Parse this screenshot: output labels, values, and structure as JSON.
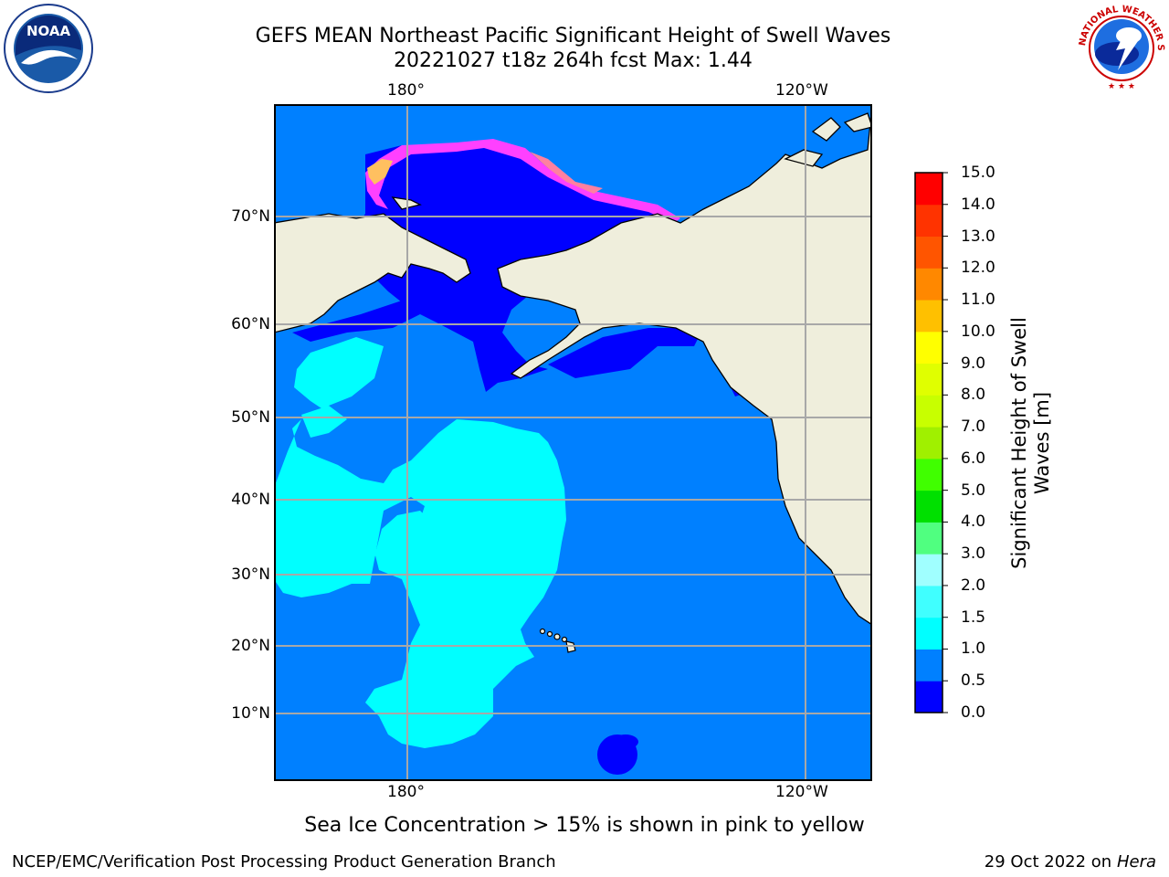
{
  "title": {
    "line1": "GEFS MEAN Northeast Pacific Significant Height of Swell Waves",
    "line2": "20221027 t18z 264h fcst   Max: 1.44"
  },
  "axes": {
    "lon_top": [
      "180°",
      "120°W"
    ],
    "lon_bottom": [
      "180°",
      "120°W"
    ],
    "lat": [
      "70°N",
      "60°N",
      "50°N",
      "40°N",
      "30°N",
      "20°N",
      "10°N"
    ]
  },
  "colorbar": {
    "title_line1": "Significant Height of Swell",
    "title_line2": "Waves [m]",
    "levels": [
      "0.0",
      "0.5",
      "1.0",
      "1.5",
      "2.0",
      "3.0",
      "4.0",
      "5.0",
      "6.0",
      "7.0",
      "8.0",
      "9.0",
      "10.0",
      "11.0",
      "12.0",
      "13.0",
      "14.0",
      "15.0"
    ],
    "colors": [
      "#0000ff",
      "#0080ff",
      "#00ffff",
      "#40ffff",
      "#a0ffff",
      "#50ff80",
      "#00e000",
      "#40ff00",
      "#a0f000",
      "#c8ff00",
      "#e0ff00",
      "#ffff00",
      "#ffc000",
      "#ff8800",
      "#ff5500",
      "#ff3300",
      "#ff0000"
    ]
  },
  "map_colors": {
    "land": "#efeedc",
    "ocean_low": "#0080ff",
    "ocean_min": "#0000ff",
    "swell_mid": "#00ffff",
    "ice": [
      "#ff40ff",
      "#ff80a0",
      "#ffc060"
    ]
  },
  "caption": "Sea Ice Concentration > 15% is shown in pink to yellow",
  "footer": {
    "left": "NCEP/EMC/Verification Post Processing Product Generation Branch",
    "right_prefix": "29 Oct 2022 on ",
    "right_host": "Hera"
  },
  "logos": {
    "noaa_text": "NOAA",
    "nws_text": "NATIONAL WEATHER SERVICE"
  }
}
